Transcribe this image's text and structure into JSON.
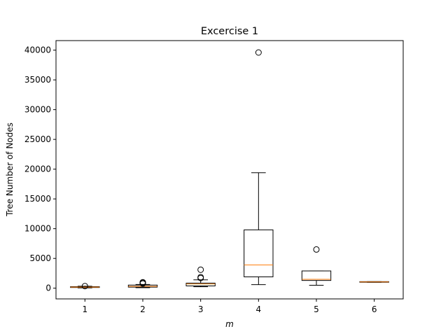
{
  "chart_data": {
    "type": "boxplot",
    "title": "Excercise 1",
    "xlabel": "m",
    "ylabel": "Tree Number of Nodes",
    "categories": [
      "1",
      "2",
      "3",
      "4",
      "5",
      "6"
    ],
    "yticks": [
      0,
      5000,
      10000,
      15000,
      20000,
      25000,
      30000,
      35000,
      40000
    ],
    "ytick_labels": [
      "0",
      "5000",
      "10000",
      "15000",
      "20000",
      "25000",
      "30000",
      "35000",
      "40000"
    ],
    "ylim": [
      -1800,
      41600
    ],
    "xlim": [
      0.5,
      6.5
    ],
    "grid": false,
    "colors": {
      "box": "#000000",
      "median": "#ff7f0e",
      "outlier": "#000000"
    },
    "boxes": [
      {
        "category": "1",
        "whisker_low": 50,
        "q1": 120,
        "median": 180,
        "q3": 250,
        "whisker_high": 330,
        "outliers": [
          350
        ]
      },
      {
        "category": "2",
        "whisker_low": 80,
        "q1": 180,
        "median": 300,
        "q3": 520,
        "whisker_high": 620,
        "outliers": [
          780,
          900,
          1000
        ]
      },
      {
        "category": "3",
        "whisker_low": 250,
        "q1": 380,
        "median": 700,
        "q3": 850,
        "whisker_high": 1400,
        "outliers": [
          1700,
          1850,
          3100
        ]
      },
      {
        "category": "4",
        "whisker_low": 600,
        "q1": 1900,
        "median": 3900,
        "q3": 9800,
        "whisker_high": 19400,
        "outliers": [
          39600
        ]
      },
      {
        "category": "5",
        "whisker_low": 500,
        "q1": 1300,
        "median": 1500,
        "q3": 2900,
        "whisker_high": 2900,
        "outliers": [
          6500
        ]
      },
      {
        "category": "6",
        "whisker_low": 1000,
        "q1": 1000,
        "median": 1050,
        "q3": 1100,
        "whisker_high": 1100,
        "outliers": []
      }
    ]
  }
}
